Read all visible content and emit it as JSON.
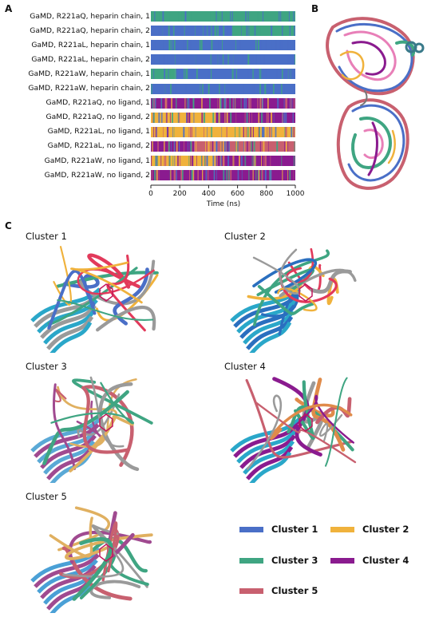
{
  "panels": {
    "a": "A",
    "b": "B",
    "c": "C"
  },
  "chart_data": {
    "type": "heatmap",
    "rows": [
      {
        "label": "GaMD, R221aQ, heparin chain, 1",
        "segments": [
          [
            0,
            1000,
            "Cluster 3"
          ]
        ]
      },
      {
        "label": "GaMD, R221aQ, heparin chain, 2",
        "segments": [
          [
            0,
            560,
            "Cluster 1"
          ],
          [
            560,
            1000,
            "Cluster 3"
          ]
        ]
      },
      {
        "label": "GaMD, R221aL, heparin chain, 1",
        "segments": [
          [
            0,
            1000,
            "Cluster 1"
          ]
        ]
      },
      {
        "label": "GaMD, R221aL, heparin chain, 2",
        "segments": [
          [
            0,
            1000,
            "Cluster 1"
          ]
        ]
      },
      {
        "label": "GaMD, R221aW, heparin chain, 1",
        "segments": [
          [
            0,
            170,
            "Cluster 3"
          ],
          [
            170,
            1000,
            "Cluster 1"
          ]
        ]
      },
      {
        "label": "GaMD, R221aW, heparin chain, 2",
        "segments": [
          [
            0,
            1000,
            "Cluster 1"
          ]
        ]
      },
      {
        "label": "GaMD, R221aQ, no ligand, 1",
        "segments": [
          [
            0,
            1000,
            "Cluster 4"
          ]
        ]
      },
      {
        "label": "GaMD, R221aQ, no ligand, 2",
        "segments": [
          [
            0,
            450,
            "Cluster 2"
          ],
          [
            450,
            1000,
            "Cluster 4"
          ]
        ]
      },
      {
        "label": "GaMD, R221aL, no ligand, 1",
        "segments": [
          [
            0,
            1000,
            "Cluster 2"
          ]
        ]
      },
      {
        "label": "GaMD, R221aL, no ligand, 2",
        "segments": [
          [
            0,
            300,
            "Cluster 4"
          ],
          [
            300,
            1000,
            "Cluster 5"
          ]
        ]
      },
      {
        "label": "GaMD, R221aW, no ligand, 1",
        "segments": [
          [
            0,
            450,
            "Cluster 2"
          ],
          [
            450,
            1000,
            "Cluster 4"
          ]
        ]
      },
      {
        "label": "GaMD, R221aW, no ligand, 2",
        "segments": [
          [
            0,
            1000,
            "Cluster 4"
          ]
        ]
      }
    ],
    "xlabel": "Time (ns)",
    "xticks": [
      0,
      200,
      400,
      600,
      800,
      1000
    ],
    "xlim": [
      0,
      1000
    ],
    "legend": [
      {
        "name": "Cluster 1",
        "color": "#4a6fc7"
      },
      {
        "name": "Cluster 2",
        "color": "#f0b23c"
      },
      {
        "name": "Cluster 3",
        "color": "#3fa582"
      },
      {
        "name": "Cluster 4",
        "color": "#8a1b8f"
      },
      {
        "name": "Cluster 5",
        "color": "#c8606f"
      }
    ]
  },
  "clusters": [
    "Cluster 1",
    "Cluster 2",
    "Cluster 3",
    "Cluster 4",
    "Cluster 5"
  ]
}
